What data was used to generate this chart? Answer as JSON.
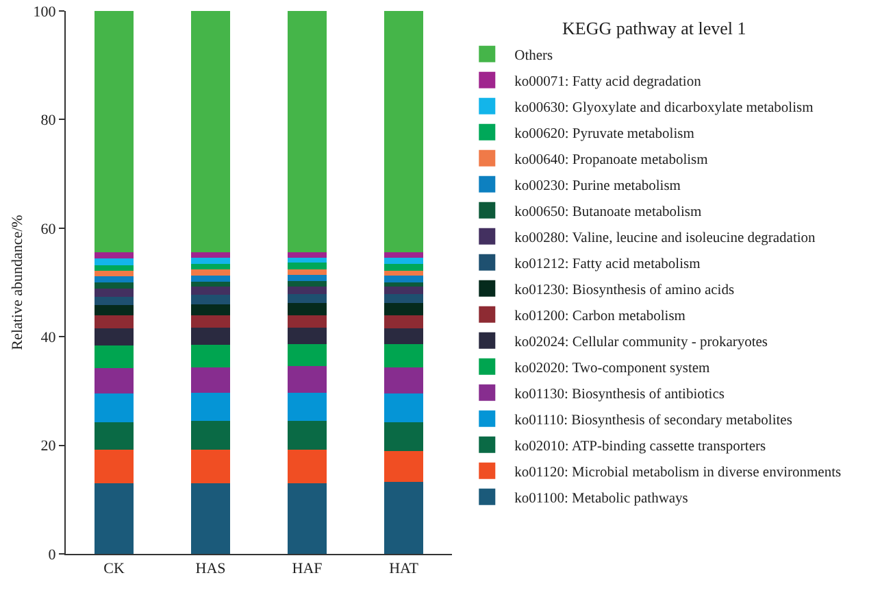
{
  "chart_data": {
    "type": "bar",
    "stacked": true,
    "legend_title": "KEGG pathway at level 1",
    "ylabel": "Relative abundance/%",
    "categories": [
      "CK",
      "HAS",
      "HAF",
      "HAT"
    ],
    "ylim": [
      0,
      100
    ],
    "yticks": [
      0,
      20,
      40,
      60,
      80,
      100
    ],
    "grid": false,
    "legend": "right",
    "series": [
      {
        "name": "ko01100: Metabolic pathways",
        "color": "#1b5a7a",
        "values": [
          13.0,
          13.0,
          13.0,
          13.2
        ]
      },
      {
        "name": "ko01120: Microbial metabolism in diverse environments",
        "color": "#f04e23",
        "values": [
          6.2,
          6.2,
          6.2,
          5.8
        ]
      },
      {
        "name": "ko02010: ATP-binding cassette transporters",
        "color": "#0a6a45",
        "values": [
          5.1,
          5.3,
          5.3,
          5.3
        ]
      },
      {
        "name": "ko01110: Biosynthesis of secondary metabolites",
        "color": "#0595d6",
        "values": [
          5.3,
          5.2,
          5.2,
          5.3
        ]
      },
      {
        "name": "ko01130: Biosynthesis of antibiotics",
        "color": "#872d8f",
        "values": [
          4.6,
          4.7,
          4.9,
          4.8
        ]
      },
      {
        "name": "ko02020: Two-component system",
        "color": "#00a550",
        "values": [
          4.2,
          4.1,
          4.1,
          4.3
        ]
      },
      {
        "name": "ko02024: Cellular community - prokaryotes",
        "color": "#2a2a40",
        "values": [
          3.1,
          3.2,
          3.0,
          2.9
        ]
      },
      {
        "name": "ko01200: Carbon metabolism",
        "color": "#8e2b33",
        "values": [
          2.5,
          2.3,
          2.3,
          2.4
        ]
      },
      {
        "name": "ko01230: Biosynthesis of amino acids",
        "color": "#052a1c",
        "values": [
          1.8,
          2.0,
          2.2,
          2.2
        ]
      },
      {
        "name": "ko01212: Fatty acid metabolism",
        "color": "#1e5070",
        "values": [
          1.5,
          1.7,
          1.6,
          1.6
        ]
      },
      {
        "name": "ko00280: Valine, leucine and isoleucine degradation",
        "color": "#433060",
        "values": [
          1.6,
          1.5,
          1.4,
          1.4
        ]
      },
      {
        "name": "ko00650: Butanoate metabolism",
        "color": "#0d5a3a",
        "values": [
          1.1,
          0.9,
          1.1,
          0.8
        ]
      },
      {
        "name": "ko00230: Purine metabolism",
        "color": "#0d80c0",
        "values": [
          1.1,
          1.2,
          1.1,
          1.3
        ]
      },
      {
        "name": "ko00640: Propanoate metabolism",
        "color": "#f07a48",
        "values": [
          1.1,
          1.1,
          1.0,
          0.9
        ]
      },
      {
        "name": "ko00620: Pyruvate metabolism",
        "color": "#00a859",
        "values": [
          1.0,
          1.0,
          1.2,
          1.2
        ]
      },
      {
        "name": "ko00630: Glyoxylate and dicarboxylate metabolism",
        "color": "#13b5ea",
        "values": [
          1.2,
          1.1,
          1.0,
          1.1
        ]
      },
      {
        "name": "ko00071: Fatty acid degradation",
        "color": "#a0258e",
        "values": [
          1.1,
          1.0,
          0.9,
          1.0
        ]
      },
      {
        "name": "Others",
        "color": "#45b549",
        "values": [
          44.5,
          44.5,
          44.5,
          44.5
        ]
      }
    ]
  }
}
